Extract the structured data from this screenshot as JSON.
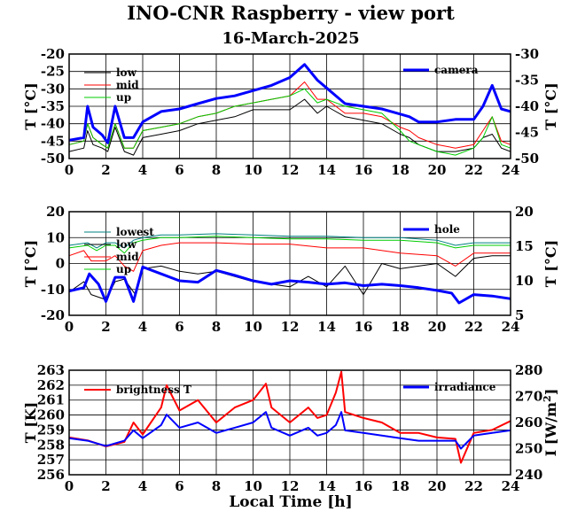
{
  "title": "INO-CNR Raspberry - view port",
  "subtitle": "16-March-2025",
  "xlabel": "Local Time [h]",
  "colors": {
    "black": "#000000",
    "red": "#ff0000",
    "green": "#00cc00",
    "blue": "#0000ff",
    "teal": "#008080"
  },
  "chart_data": [
    {
      "type": "line",
      "x_ticks": [
        0,
        2,
        4,
        6,
        8,
        10,
        12,
        14,
        16,
        18,
        20,
        22,
        24
      ],
      "xlim": [
        0,
        24
      ],
      "ylabel": "T [°C]",
      "ylim": [
        -50,
        -20
      ],
      "y_ticks": [
        -50,
        -45,
        -40,
        -35,
        -30,
        -25,
        -20
      ],
      "y2label": "T [°C]",
      "y2lim": [
        -50,
        -30
      ],
      "y2_ticks": [
        -50,
        -45,
        -40,
        -35,
        -30
      ],
      "legend_left": [
        "low",
        "mid",
        "up"
      ],
      "legend_right": [
        "camera"
      ],
      "series": [
        {
          "name": "low",
          "axis": "left",
          "color": "#000000",
          "width": 1,
          "x": [
            0,
            0.8,
            1.0,
            1.3,
            1.8,
            2.1,
            2.5,
            3.0,
            3.5,
            4.0,
            5,
            6,
            7,
            8,
            9,
            10,
            11,
            12,
            12.8,
            13.5,
            14,
            15,
            16,
            17,
            18,
            18.5,
            19,
            20,
            21,
            22,
            22.5,
            23,
            23.5,
            24
          ],
          "y": [
            -48,
            -47,
            -42,
            -46,
            -47,
            -48,
            -41,
            -48,
            -49,
            -44,
            -43,
            -42,
            -40,
            -39,
            -38,
            -36,
            -36,
            -36,
            -33,
            -37,
            -35,
            -38,
            -39,
            -40,
            -43,
            -44,
            -46,
            -48,
            -48,
            -47,
            -44,
            -43,
            -47,
            -48
          ]
        },
        {
          "name": "mid",
          "axis": "left",
          "color": "#ff0000",
          "width": 1,
          "x": [
            0,
            0.8,
            1.0,
            1.3,
            1.8,
            2.1,
            2.5,
            3.0,
            3.5,
            4.0,
            5,
            6,
            7,
            8,
            9,
            10,
            11,
            12,
            12.8,
            13.5,
            14,
            15,
            16,
            17,
            18,
            18.5,
            19,
            20,
            21,
            22,
            22.5,
            23,
            23.5,
            24
          ],
          "y": [
            -46,
            -45,
            -40,
            -44,
            -46,
            -47,
            -40,
            -47,
            -47,
            -42,
            -41,
            -40,
            -38,
            -37,
            -35,
            -34,
            -33,
            -32,
            -28,
            -33,
            -33,
            -37,
            -37,
            -38,
            -41,
            -42,
            -44,
            -46,
            -47,
            -46,
            -42,
            -38,
            -45,
            -46
          ]
        },
        {
          "name": "up",
          "axis": "left",
          "color": "#00cc00",
          "width": 1,
          "x": [
            0,
            0.8,
            1.0,
            1.3,
            1.8,
            2.1,
            2.5,
            3.0,
            3.5,
            4.0,
            5,
            6,
            7,
            8,
            9,
            10,
            11,
            12,
            12.8,
            13.5,
            14,
            15,
            16,
            17,
            18,
            18.5,
            19,
            20,
            21,
            22,
            22.5,
            23,
            23.5,
            24
          ],
          "y": [
            -46,
            -45,
            -40,
            -44,
            -46,
            -47,
            -40,
            -47,
            -47,
            -42,
            -41,
            -40,
            -38,
            -37,
            -35,
            -34,
            -33,
            -32,
            -30,
            -34,
            -33,
            -35,
            -36,
            -37,
            -42,
            -45,
            -46,
            -48,
            -49,
            -47,
            -44,
            -38,
            -46,
            -47
          ]
        },
        {
          "name": "camera",
          "axis": "right",
          "color": "#0000ff",
          "width": 3,
          "x": [
            0,
            0.8,
            1.0,
            1.3,
            1.8,
            2.1,
            2.5,
            3.0,
            3.5,
            4.0,
            5,
            6,
            7,
            8,
            9,
            10,
            11,
            12,
            12.8,
            13.5,
            14,
            15,
            16,
            17,
            18,
            18.5,
            19,
            20,
            21,
            22,
            22.5,
            23,
            23.5,
            24
          ],
          "y": [
            -46.5,
            -46,
            -40,
            -44,
            -45.5,
            -47,
            -40,
            -46,
            -46,
            -43,
            -41,
            -40.5,
            -39.5,
            -38.5,
            -38,
            -37,
            -36,
            -34.5,
            -32,
            -35,
            -36.5,
            -39.5,
            -40,
            -40.5,
            -41.5,
            -42,
            -43,
            -43,
            -42.5,
            -42.5,
            -40,
            -36,
            -40.5,
            -41
          ]
        }
      ]
    },
    {
      "type": "line",
      "x_ticks": [
        0,
        2,
        4,
        6,
        8,
        10,
        12,
        14,
        16,
        18,
        20,
        22,
        24
      ],
      "xlim": [
        0,
        24
      ],
      "ylabel": "T [°C]",
      "ylim": [
        -20,
        20
      ],
      "y_ticks": [
        -20,
        -10,
        0,
        10,
        20
      ],
      "y2label": "T [°C]",
      "y2lim": [
        5,
        20
      ],
      "y2_ticks": [
        5,
        10,
        15,
        20
      ],
      "legend_left": [
        "lowest",
        "low",
        "mid",
        "up"
      ],
      "legend_right": [
        "hole"
      ],
      "series": [
        {
          "name": "lowest",
          "axis": "left",
          "color": "#008080",
          "width": 1,
          "x": [
            0,
            1,
            1.5,
            2,
            2.5,
            3,
            3.5,
            4,
            5,
            6,
            8,
            10,
            12,
            14,
            16,
            18,
            20,
            21,
            22,
            24
          ],
          "y": [
            7,
            8,
            6,
            8,
            8,
            6,
            9,
            10,
            11,
            11,
            11.5,
            11,
            10.5,
            10.5,
            10,
            10,
            9,
            7,
            8,
            8
          ]
        },
        {
          "name": "low",
          "axis": "left",
          "color": "#000000",
          "width": 1,
          "x": [
            0,
            0.8,
            1.2,
            2,
            2.5,
            3,
            3.6,
            4,
            5,
            6,
            7,
            8,
            9,
            10,
            11,
            12,
            13,
            14,
            15,
            16,
            17,
            18,
            19,
            20,
            21,
            22,
            23,
            24
          ],
          "y": [
            -11,
            -7,
            -12,
            -14,
            -7,
            -6,
            -12,
            -2,
            -1,
            -3,
            -4,
            -3,
            -5,
            -7,
            -8,
            -9,
            -5,
            -9,
            -1,
            -12,
            0,
            -2,
            -1,
            0,
            -5,
            2,
            3,
            3
          ]
        },
        {
          "name": "mid",
          "axis": "left",
          "color": "#ff0000",
          "width": 1,
          "x": [
            0,
            0.8,
            1.2,
            2,
            2.5,
            3,
            3.5,
            4,
            5,
            6,
            8,
            10,
            12,
            14,
            16,
            18,
            20,
            21,
            22,
            24
          ],
          "y": [
            3,
            5,
            1,
            1,
            3,
            -1,
            -3,
            5,
            7,
            8,
            8,
            7.5,
            7.5,
            6,
            6,
            4,
            3,
            -1,
            4,
            4
          ]
        },
        {
          "name": "up",
          "axis": "left",
          "color": "#00cc00",
          "width": 1,
          "x": [
            0,
            1,
            1.5,
            2,
            2.5,
            3,
            3.5,
            4,
            5,
            6,
            8,
            10,
            12,
            14,
            16,
            18,
            20,
            21,
            22,
            24
          ],
          "y": [
            6,
            7,
            5,
            7,
            7,
            4,
            8,
            9,
            10,
            10,
            10.5,
            10,
            9.5,
            9.5,
            9,
            9,
            8,
            6,
            7,
            7
          ]
        },
        {
          "name": "hole",
          "axis": "right",
          "color": "#0000ff",
          "width": 3,
          "x": [
            0,
            0.8,
            1.1,
            1.6,
            2,
            2.5,
            3,
            3.5,
            4,
            5,
            6,
            7,
            8,
            9,
            10,
            11,
            12,
            13,
            14,
            15,
            16,
            17,
            18,
            19,
            20,
            20.8,
            21.2,
            22,
            23,
            24
          ],
          "y": [
            8.5,
            9,
            11,
            9.5,
            7,
            10.5,
            10.5,
            7,
            12,
            11,
            10,
            9.8,
            11.5,
            10.8,
            10,
            9.5,
            10,
            9.8,
            9.5,
            9.7,
            9.3,
            9.5,
            9.3,
            9.0,
            8.6,
            8.2,
            6.8,
            8.0,
            7.8,
            7.4
          ]
        }
      ]
    },
    {
      "type": "line",
      "x_ticks": [
        0,
        2,
        4,
        6,
        8,
        10,
        12,
        14,
        16,
        18,
        20,
        22,
        24
      ],
      "xlim": [
        0,
        24
      ],
      "ylabel": "T [K]",
      "ylim": [
        256,
        263
      ],
      "y_ticks": [
        256,
        257,
        258,
        259,
        260,
        261,
        262,
        263
      ],
      "y2label": "I [W/m2]",
      "y2lim": [
        240,
        280
      ],
      "y2_ticks": [
        240,
        250,
        260,
        270,
        280
      ],
      "legend_left": [
        "brightness T"
      ],
      "legend_right": [
        "irradiance"
      ],
      "series": [
        {
          "name": "brightness T",
          "axis": "left",
          "color": "#ff0000",
          "width": 2,
          "x": [
            0,
            1,
            2,
            3,
            3.5,
            4,
            5,
            5.3,
            6,
            7,
            8,
            9,
            10,
            10.7,
            11,
            12,
            13,
            13.5,
            14,
            14.5,
            14.8,
            15,
            16,
            17,
            18,
            19,
            20,
            21,
            21.3,
            22,
            23,
            24
          ],
          "y": [
            258.5,
            258.3,
            257.9,
            258.2,
            259.5,
            258.7,
            260.5,
            262.0,
            260.3,
            261.0,
            259.5,
            260.5,
            261.0,
            262.1,
            260.5,
            259.5,
            260.5,
            259.8,
            260.0,
            261.5,
            262.9,
            260.2,
            259.8,
            259.5,
            258.8,
            258.8,
            258.5,
            258.4,
            256.8,
            258.8,
            259.0,
            259.6
          ]
        },
        {
          "name": "irradiance",
          "axis": "right",
          "color": "#0000ff",
          "width": 2,
          "x": [
            0,
            1,
            2,
            3,
            3.5,
            4,
            5,
            5.3,
            6,
            7,
            8,
            9,
            10,
            10.7,
            11,
            12,
            13,
            13.5,
            14,
            14.5,
            14.8,
            15,
            16,
            17,
            18,
            19,
            20,
            21,
            21.3,
            22,
            23,
            24
          ],
          "y": [
            254,
            253,
            251,
            253,
            257,
            254,
            259,
            263,
            258,
            260,
            256,
            258,
            260,
            264,
            258,
            255,
            258,
            255,
            256,
            259,
            264,
            257,
            256,
            255,
            254,
            253,
            253,
            253,
            250,
            255,
            256,
            257
          ]
        }
      ]
    }
  ]
}
